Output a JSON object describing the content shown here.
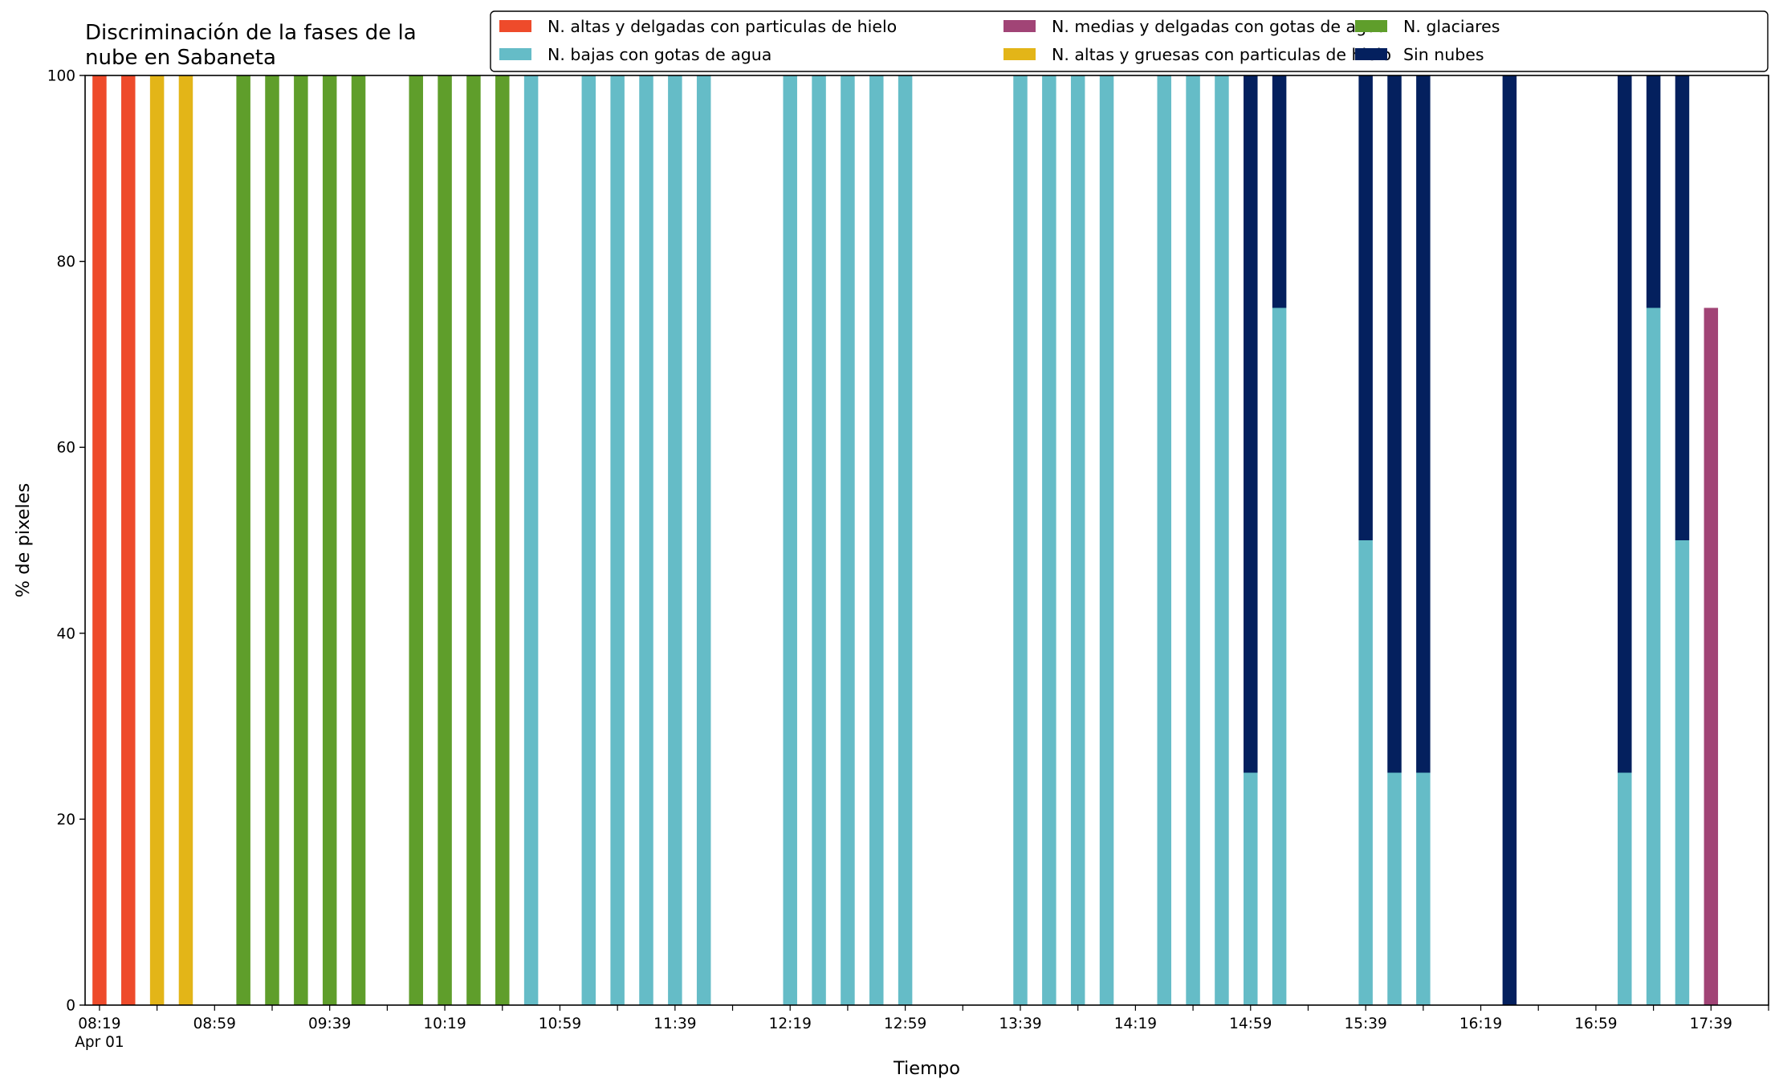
{
  "chart_data": {
    "type": "bar",
    "stacked": true,
    "title": "Discriminación de la fases de la\nnube en Sabaneta",
    "xlabel": "Tiempo",
    "ylabel": "% de pixeles",
    "ylim": [
      0,
      100
    ],
    "yticks": [
      0,
      20,
      40,
      60,
      80,
      100
    ],
    "xlim": [
      "08:14",
      "17:59"
    ],
    "bar_interval_minutes": 10,
    "xtick_labels": [
      "08:19\nApr 01",
      "08:59",
      "09:39",
      "10:19",
      "10:59",
      "11:39",
      "12:19",
      "12:59",
      "13:39",
      "14:19",
      "14:59",
      "15:39",
      "16:19",
      "16:59",
      "17:39"
    ],
    "grid": false,
    "legend": {
      "placement": "top-right",
      "columns": 3
    },
    "x": [
      "08:19",
      "08:29",
      "08:39",
      "08:49",
      "08:59",
      "09:09",
      "09:19",
      "09:29",
      "09:39",
      "09:49",
      "09:59",
      "10:09",
      "10:19",
      "10:29",
      "10:39",
      "10:49",
      "10:59",
      "11:09",
      "11:19",
      "11:29",
      "11:39",
      "11:49",
      "11:59",
      "12:09",
      "12:19",
      "12:29",
      "12:39",
      "12:49",
      "12:59",
      "13:09",
      "13:19",
      "13:29",
      "13:39",
      "13:49",
      "13:59",
      "14:09",
      "14:19",
      "14:29",
      "14:39",
      "14:49",
      "14:59",
      "15:09",
      "15:19",
      "15:29",
      "15:39",
      "15:49",
      "15:59",
      "16:09",
      "16:19",
      "16:29",
      "16:39",
      "16:49",
      "16:59",
      "17:09",
      "17:19",
      "17:29",
      "17:39",
      "17:49"
    ],
    "series": [
      {
        "name": "N. altas y delgadas con particulas de hielo",
        "color": "#EE4B2B",
        "values": [
          100,
          100,
          0,
          0,
          0,
          0,
          0,
          0,
          0,
          0,
          0,
          0,
          0,
          0,
          0,
          0,
          0,
          0,
          0,
          0,
          0,
          0,
          0,
          0,
          0,
          0,
          0,
          0,
          0,
          0,
          0,
          0,
          0,
          0,
          0,
          0,
          0,
          0,
          0,
          0,
          0,
          0,
          0,
          0,
          0,
          0,
          0,
          0,
          0,
          0,
          0,
          0,
          0,
          0,
          0,
          0,
          0,
          0
        ]
      },
      {
        "name": "N. altas y gruesas con particulas de hielo",
        "color": "#E3B518",
        "values": [
          0,
          0,
          100,
          100,
          0,
          0,
          0,
          0,
          0,
          0,
          0,
          0,
          0,
          0,
          0,
          0,
          0,
          0,
          0,
          0,
          0,
          0,
          0,
          0,
          0,
          0,
          0,
          0,
          0,
          0,
          0,
          0,
          0,
          0,
          0,
          0,
          0,
          0,
          0,
          0,
          0,
          0,
          0,
          0,
          0,
          0,
          0,
          0,
          0,
          0,
          0,
          0,
          0,
          0,
          0,
          0,
          0,
          0
        ]
      },
      {
        "name": "N. bajas con gotas de agua",
        "color": "#65BCC7",
        "values": [
          0,
          0,
          0,
          0,
          0,
          0,
          0,
          0,
          0,
          0,
          0,
          0,
          0,
          0,
          0,
          100,
          0,
          100,
          100,
          100,
          100,
          100,
          0,
          0,
          100,
          100,
          100,
          100,
          100,
          0,
          0,
          0,
          100,
          100,
          100,
          100,
          0,
          100,
          100,
          100,
          25,
          75,
          0,
          0,
          50,
          25,
          25,
          0,
          0,
          0,
          0,
          0,
          0,
          25,
          75,
          50,
          0,
          0
        ]
      },
      {
        "name": "N. glaciares",
        "color": "#5F9E2B",
        "values": [
          0,
          0,
          0,
          0,
          0,
          100,
          100,
          100,
          100,
          100,
          0,
          100,
          100,
          100,
          100,
          0,
          0,
          0,
          0,
          0,
          0,
          0,
          0,
          0,
          0,
          0,
          0,
          0,
          0,
          0,
          0,
          0,
          0,
          0,
          0,
          0,
          0,
          0,
          0,
          0,
          0,
          0,
          0,
          0,
          0,
          0,
          0,
          0,
          0,
          0,
          0,
          0,
          0,
          0,
          0,
          0,
          0,
          0
        ]
      },
      {
        "name": "N. medias y delgadas con gotas de agua",
        "color": "#A14476",
        "values": [
          0,
          0,
          0,
          0,
          0,
          0,
          0,
          0,
          0,
          0,
          0,
          0,
          0,
          0,
          0,
          0,
          0,
          0,
          0,
          0,
          0,
          0,
          0,
          0,
          0,
          0,
          0,
          0,
          0,
          0,
          0,
          0,
          0,
          0,
          0,
          0,
          0,
          0,
          0,
          0,
          0,
          0,
          0,
          0,
          0,
          0,
          0,
          0,
          0,
          0,
          0,
          0,
          0,
          0,
          0,
          0,
          75,
          0
        ]
      },
      {
        "name": "Sin nubes",
        "color": "#04205E",
        "values": [
          0,
          0,
          0,
          0,
          0,
          0,
          0,
          0,
          0,
          0,
          0,
          0,
          0,
          0,
          0,
          0,
          0,
          0,
          0,
          0,
          0,
          0,
          0,
          0,
          0,
          0,
          0,
          0,
          0,
          0,
          0,
          0,
          0,
          0,
          0,
          0,
          0,
          0,
          0,
          0,
          75,
          25,
          0,
          0,
          50,
          75,
          75,
          0,
          0,
          100,
          0,
          0,
          0,
          75,
          25,
          50,
          0,
          0
        ]
      }
    ],
    "legend_order": [
      "N. altas y delgadas con particulas de hielo",
      "N. bajas con gotas de agua",
      "N. medias y delgadas con gotas de agua",
      "N. altas y gruesas con particulas de hielo",
      "N. glaciares",
      "Sin nubes"
    ]
  }
}
